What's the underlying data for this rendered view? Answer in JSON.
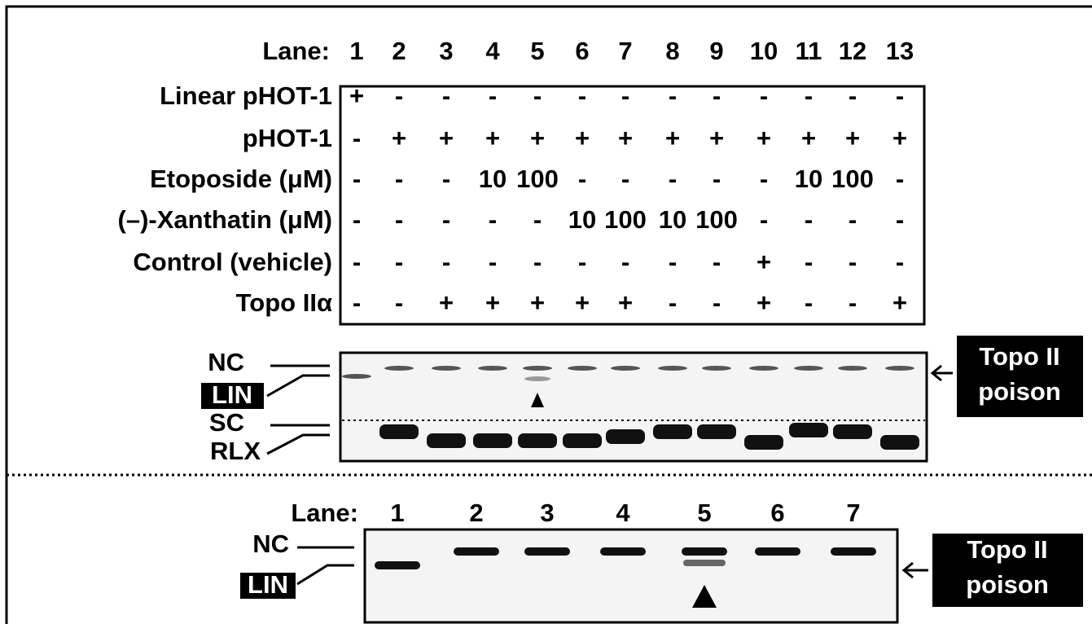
{
  "top_panel": {
    "lane_label": "Lane:",
    "lanes": [
      1,
      2,
      3,
      4,
      5,
      6,
      7,
      8,
      9,
      10,
      11,
      12,
      13
    ],
    "rows": [
      {
        "label": "Linear pHOT-1",
        "cells": [
          "+",
          "-",
          "-",
          "-",
          "-",
          "-",
          "-",
          "-",
          "-",
          "-",
          "-",
          "-",
          "-"
        ]
      },
      {
        "label": "pHOT-1",
        "cells": [
          "-",
          "+",
          "+",
          "+",
          "+",
          "+",
          "+",
          "+",
          "+",
          "+",
          "+",
          "+",
          "+"
        ]
      },
      {
        "label": "Etoposide (μM)",
        "cells": [
          "-",
          "-",
          "-",
          "10",
          "100",
          "-",
          "-",
          "-",
          "-",
          "-",
          "10",
          "100",
          "-"
        ]
      },
      {
        "label": "(–)-Xanthatin (μM)",
        "cells": [
          "-",
          "-",
          "-",
          "-",
          "-",
          "10",
          "100",
          "10",
          "100",
          "-",
          "-",
          "-",
          "-"
        ]
      },
      {
        "label": "Control (vehicle)",
        "cells": [
          "-",
          "-",
          "-",
          "-",
          "-",
          "-",
          "-",
          "-",
          "-",
          "+",
          "-",
          "-",
          "-"
        ]
      },
      {
        "label": "Topo IIα",
        "cells": [
          "-",
          "-",
          "+",
          "+",
          "+",
          "+",
          "+",
          "-",
          "-",
          "+",
          "-",
          "-",
          "+"
        ]
      }
    ],
    "gel_labels": [
      "NC",
      "LIN",
      "SC",
      "RLX"
    ],
    "side_label": [
      "Topo II",
      "poison"
    ]
  },
  "bottom_panel": {
    "lane_label": "Lane:",
    "lanes": [
      1,
      2,
      3,
      4,
      5,
      6,
      7
    ],
    "gel_labels": [
      "NC",
      "LIN"
    ],
    "side_label": [
      "Topo II",
      "poison"
    ]
  }
}
